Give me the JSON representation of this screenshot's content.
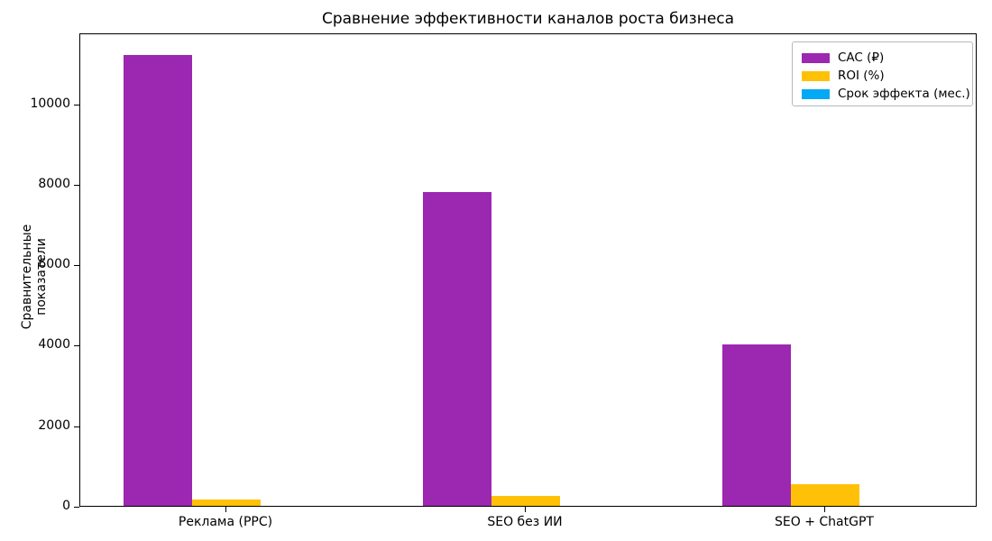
{
  "chart_data": {
    "type": "bar",
    "title": "Сравнение эффективности каналов роста бизнеса",
    "xlabel": "",
    "ylabel": "Сравнительные показатели",
    "categories": [
      "Реклама (PPC)",
      "SEO без ИИ",
      "SEO + ChatGPT"
    ],
    "series": [
      {
        "name": "CAC (₽)",
        "color": "#9C27B0",
        "values": [
          11200,
          7800,
          4000
        ]
      },
      {
        "name": "ROI (%)",
        "color": "#FFC107",
        "values": [
          150,
          250,
          540
        ]
      },
      {
        "name": "Срок эффекта (мес.)",
        "color": "#03A9F4",
        "values": [
          0,
          0,
          0
        ],
        "note": "bars too small to be visible at this axis scale"
      }
    ],
    "ylim": [
      0,
      11760
    ],
    "yticks": [
      0,
      2000,
      4000,
      6000,
      8000,
      10000
    ],
    "grid": false,
    "legend_position": "upper right",
    "background": "#ffffff"
  }
}
